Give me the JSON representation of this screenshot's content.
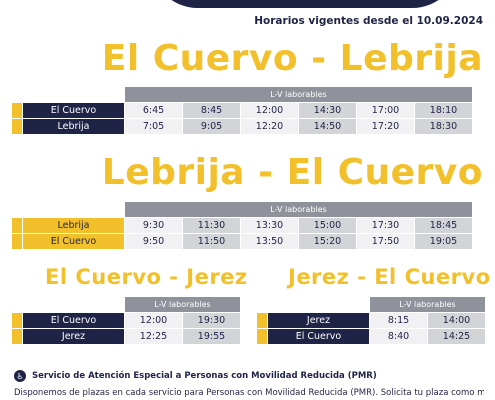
{
  "header": {
    "vigentes": "Horarios vigentes desde el 10.09.2024"
  },
  "sections": {
    "s1": {
      "title": "El Cuervo - Lebrija",
      "band": "L-V laborables",
      "rows": [
        {
          "stop": "El Cuervo",
          "times": [
            "6:45",
            "8:45",
            "12:00",
            "14:30",
            "17:00",
            "18:10"
          ]
        },
        {
          "stop": "Lebrija",
          "times": [
            "7:05",
            "9:05",
            "12:20",
            "14:50",
            "17:20",
            "18:30"
          ]
        }
      ]
    },
    "s2": {
      "title": "Lebrija - El Cuervo",
      "band": "L-V laborables",
      "rows": [
        {
          "stop": "Lebrija",
          "times": [
            "9:30",
            "11:30",
            "13:30",
            "15:00",
            "17:30",
            "18:45"
          ]
        },
        {
          "stop": "El Cuervo",
          "times": [
            "9:50",
            "11:50",
            "13:50",
            "15:20",
            "17:50",
            "19:05"
          ]
        }
      ]
    },
    "s3": {
      "title": "El Cuervo - Jerez",
      "band": "L-V laborables",
      "rows": [
        {
          "stop": "El Cuervo",
          "times": [
            "12:00",
            "19:30"
          ]
        },
        {
          "stop": "Jerez",
          "times": [
            "12:25",
            "19:55"
          ]
        }
      ]
    },
    "s4": {
      "title": "Jerez - El Cuervo",
      "band": "L-V laborables",
      "rows": [
        {
          "stop": "Jerez",
          "times": [
            "8:15",
            "14:00"
          ]
        },
        {
          "stop": "El Cuervo",
          "times": [
            "8:40",
            "14:25"
          ]
        }
      ]
    }
  },
  "pmr": {
    "icon": "accessibility-icon",
    "title": "Servicio de Atención Especial a Personas con Movilidad Reducida (PMR)",
    "text": "Disponemos de plazas en cada servicio para Personas con Movilidad Reducida (PMR). Solicita tu plaza como mínimo"
  },
  "colors": {
    "navy": "#1f2346",
    "yellow": "#f2c02b",
    "grey": "#8f929b"
  }
}
